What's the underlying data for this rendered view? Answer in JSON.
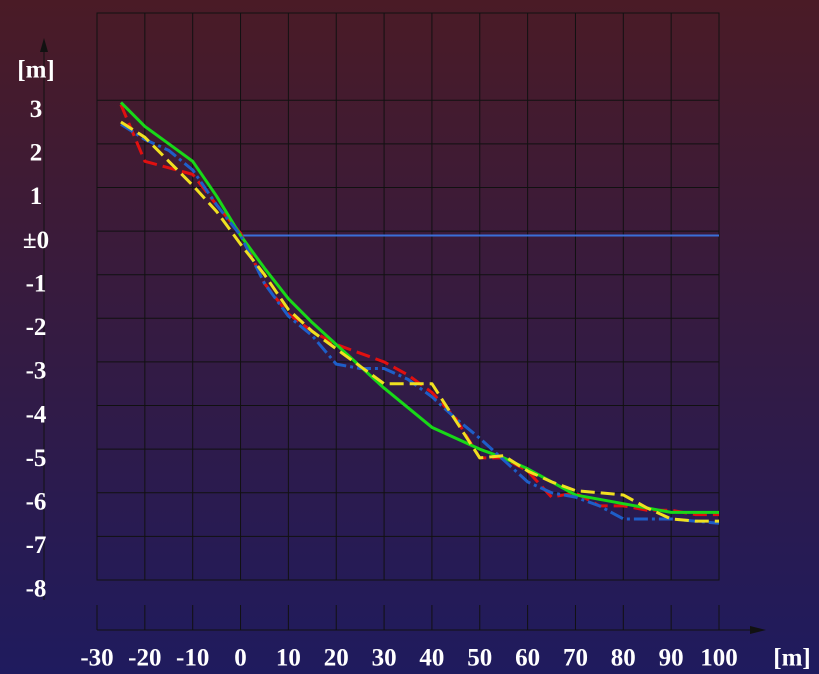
{
  "chart_data": {
    "type": "line",
    "x_label": "[m]",
    "y_label": "[m]",
    "x": [
      -25,
      -20,
      -15,
      -10,
      -5,
      0,
      5,
      10,
      15,
      20,
      25,
      30,
      35,
      40,
      45,
      50,
      55,
      60,
      65,
      70,
      75,
      80,
      85,
      90,
      95,
      100
    ],
    "series": [
      {
        "color": "#3a6fd8",
        "dash": "solid",
        "width": 2,
        "values": [
          null,
          null,
          null,
          null,
          null,
          -0.1,
          -0.1,
          -0.1,
          -0.1,
          -0.1,
          -0.1,
          -0.1,
          -0.1,
          -0.1,
          -0.1,
          -0.1,
          -0.1,
          -0.1,
          -0.1,
          -0.1,
          -0.1,
          -0.1,
          -0.1,
          -0.1,
          -0.1,
          -0.1
        ]
      },
      {
        "color": "#e01010",
        "dash": "dashed",
        "width": 3,
        "values": [
          2.9,
          1.6,
          1.45,
          1.3,
          0.6,
          -0.05,
          -1.2,
          -1.9,
          -2.3,
          -2.6,
          -2.8,
          -3.0,
          -3.3,
          -3.7,
          -4.3,
          -5.2,
          -5.2,
          -5.5,
          -6.1,
          -6.0,
          -6.3,
          -6.3,
          -6.4,
          -6.4,
          -6.5,
          -6.5
        ]
      },
      {
        "color": "#18d818",
        "dash": "solid",
        "width": 3,
        "values": [
          2.95,
          2.4,
          2.0,
          1.6,
          0.8,
          -0.1,
          -0.85,
          -1.55,
          -2.1,
          -2.6,
          -3.1,
          -3.6,
          -4.05,
          -4.5,
          -4.75,
          -5.0,
          -5.2,
          -5.45,
          -5.75,
          -6.05,
          -6.15,
          -6.25,
          -6.35,
          -6.45,
          -6.45,
          -6.45
        ]
      },
      {
        "color": "#1e5ec8",
        "dash": "dashdot",
        "width": 3,
        "values": [
          2.45,
          2.1,
          1.85,
          1.4,
          0.6,
          -0.1,
          -1.2,
          -1.95,
          -2.4,
          -3.05,
          -3.15,
          -3.15,
          -3.4,
          -3.8,
          -4.3,
          -4.75,
          -5.25,
          -5.75,
          -6.0,
          -6.1,
          -6.3,
          -6.6,
          -6.6,
          -6.6,
          -6.65,
          -6.7
        ]
      },
      {
        "color": "#f0e020",
        "dash": "dashed",
        "width": 3,
        "values": [
          2.5,
          2.15,
          1.6,
          1.05,
          0.45,
          -0.3,
          -1.0,
          -1.8,
          -2.3,
          -2.7,
          -3.1,
          -3.5,
          -3.5,
          -3.5,
          -4.35,
          -5.2,
          -5.15,
          -5.5,
          -5.75,
          -5.95,
          -6.0,
          -6.05,
          -6.35,
          -6.6,
          -6.65,
          -6.65
        ]
      }
    ],
    "xlim": [
      -30,
      100
    ],
    "xticks": [
      -30,
      -20,
      -10,
      0,
      10,
      20,
      30,
      40,
      50,
      60,
      70,
      80,
      90,
      100
    ],
    "ylim": [
      -8,
      5
    ],
    "yticks": [
      -8,
      -7,
      -6,
      -5,
      -4,
      -3,
      -2,
      -1,
      {
        "value": 0,
        "label": "±0"
      },
      1,
      2,
      3
    ],
    "grid": true
  }
}
